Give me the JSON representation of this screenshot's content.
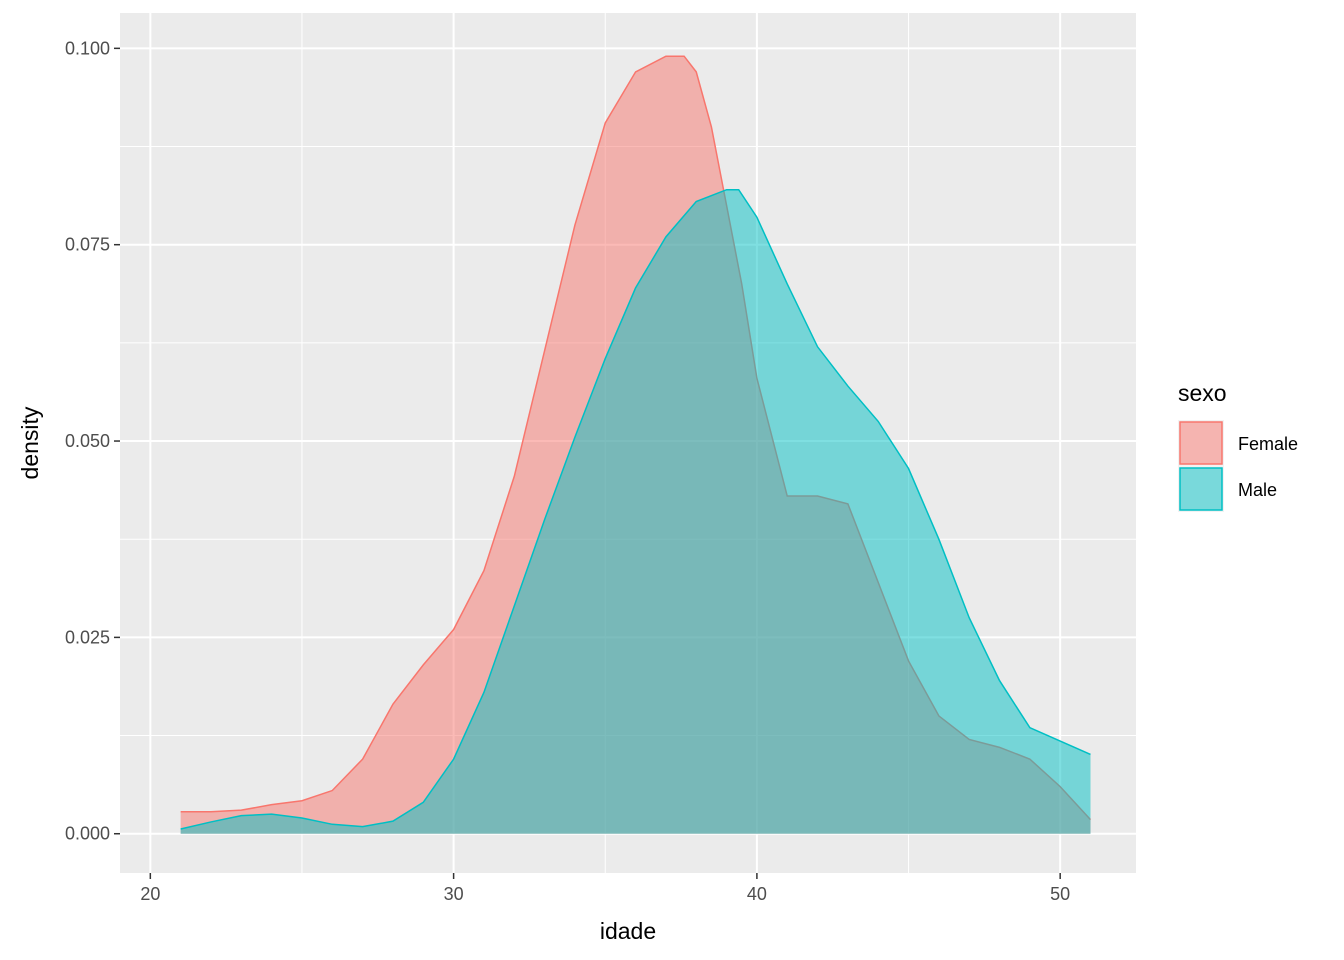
{
  "chart_data": {
    "type": "area",
    "subtype": "density",
    "xlabel": "idade",
    "ylabel": "density",
    "xlim": [
      19.0,
      52.5
    ],
    "ylim": [
      -0.005,
      0.1045
    ],
    "x_ticks": [
      20,
      30,
      40,
      50
    ],
    "x_tick_labels": [
      "20",
      "30",
      "40",
      "50"
    ],
    "y_ticks": [
      0.0,
      0.025,
      0.05,
      0.075,
      0.1
    ],
    "y_tick_labels": [
      "0.000",
      "0.025",
      "0.050",
      "0.075",
      "0.100"
    ],
    "grid": true,
    "legend": {
      "title": "sexo",
      "position": "right"
    },
    "series": [
      {
        "name": "Female",
        "color": "#F8766D",
        "fill_alpha": 0.5,
        "x": [
          21,
          22,
          23,
          24,
          25,
          26,
          27,
          28,
          29,
          30,
          31,
          32,
          33,
          34,
          35,
          36,
          37,
          37.6,
          38,
          38.5,
          39,
          39.5,
          40,
          41,
          42,
          43,
          44,
          45,
          46,
          47,
          48,
          49,
          50,
          51
        ],
        "y": [
          0.0028,
          0.0028,
          0.003,
          0.0037,
          0.0042,
          0.0055,
          0.0095,
          0.0165,
          0.0215,
          0.026,
          0.0335,
          0.0455,
          0.0615,
          0.0775,
          0.0905,
          0.097,
          0.099,
          0.099,
          0.097,
          0.09,
          0.08,
          0.07,
          0.058,
          0.043,
          0.043,
          0.042,
          0.032,
          0.022,
          0.015,
          0.012,
          0.011,
          0.0095,
          0.006,
          0.0018
        ]
      },
      {
        "name": "Male",
        "color": "#00BFC4",
        "fill_alpha": 0.5,
        "x": [
          21,
          22,
          23,
          24,
          25,
          26,
          27,
          28,
          29,
          30,
          31,
          32,
          33,
          34,
          35,
          36,
          37,
          38,
          39,
          39.4,
          40,
          41,
          42,
          43,
          44,
          45,
          46,
          47,
          48,
          49,
          50,
          51
        ],
        "y": [
          0.0006,
          0.0015,
          0.0023,
          0.0025,
          0.002,
          0.0012,
          0.0009,
          0.0016,
          0.004,
          0.0095,
          0.018,
          0.029,
          0.04,
          0.0505,
          0.0605,
          0.0695,
          0.076,
          0.0805,
          0.082,
          0.082,
          0.0785,
          0.07,
          0.062,
          0.057,
          0.0525,
          0.0465,
          0.0375,
          0.0275,
          0.0195,
          0.0135,
          0.0118,
          0.0101
        ]
      }
    ]
  }
}
